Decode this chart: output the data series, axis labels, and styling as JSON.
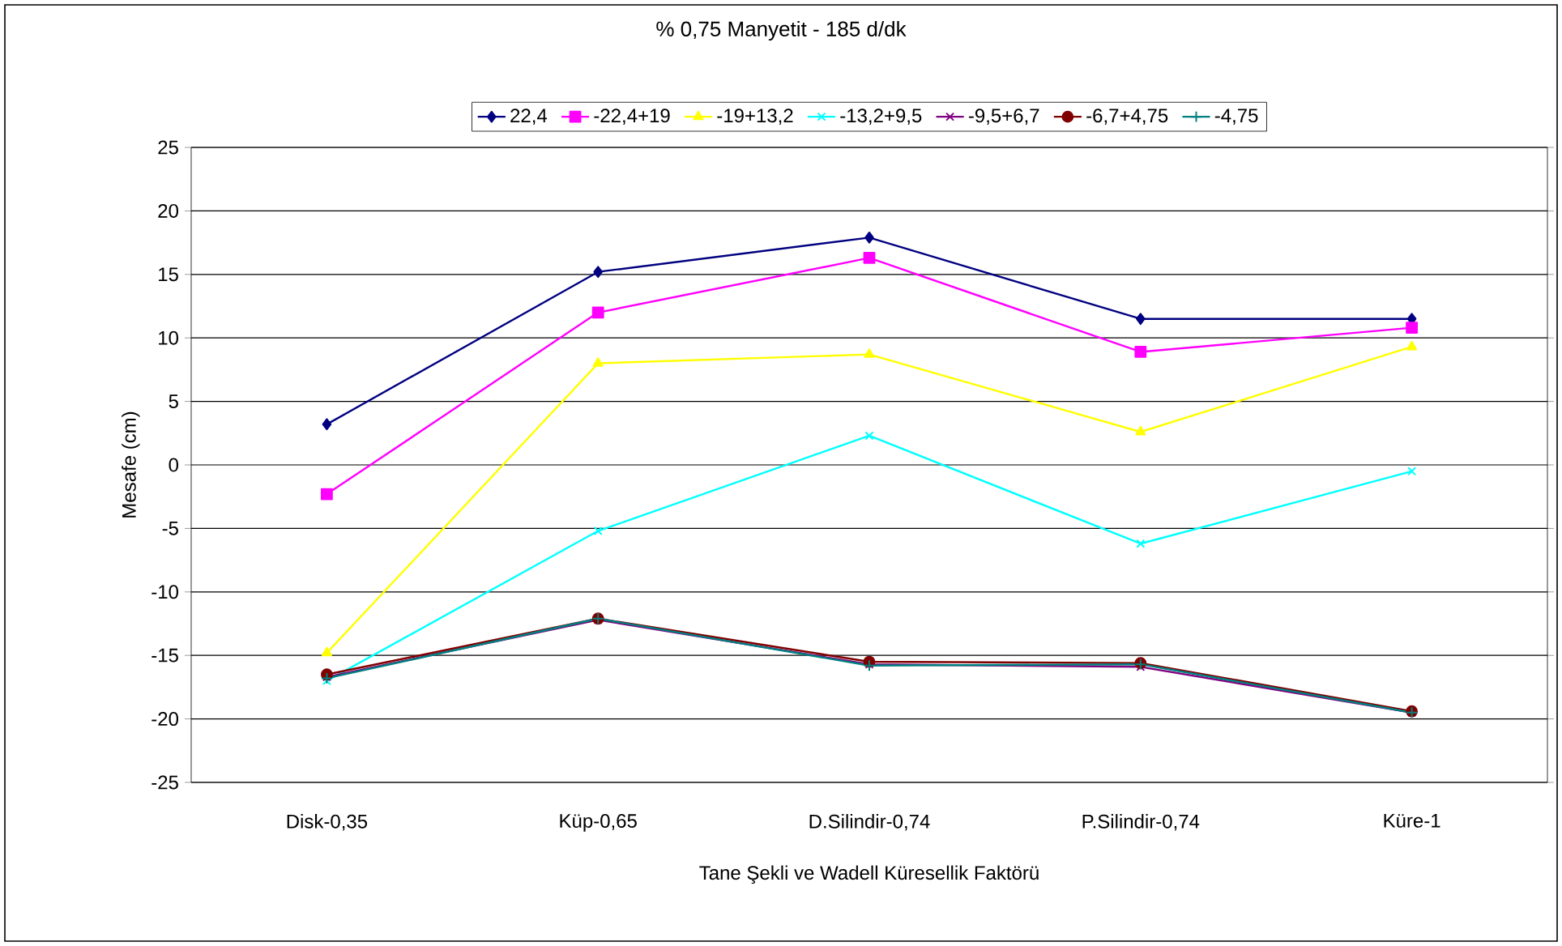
{
  "chart_data": {
    "type": "line",
    "title": "% 0,75 Manyetit - 185 d/dk",
    "xlabel": "Tane Şekli ve Wadell Küresellik Faktörü",
    "ylabel": "Mesafe (cm)",
    "categories": [
      "Disk-0,35",
      "Küp-0,65",
      "D.Silindir-0,74",
      "P.Silindir-0,74",
      "Küre-1"
    ],
    "ylim": [
      -25,
      25
    ],
    "yticks": [
      -25,
      -20,
      -15,
      -10,
      -5,
      0,
      5,
      10,
      15,
      20,
      25
    ],
    "grid": "y",
    "legend": "top",
    "series": [
      {
        "name": "22,4",
        "color": "#000080",
        "marker": "diamond",
        "values": [
          3.2,
          15.2,
          17.9,
          11.5,
          11.5
        ]
      },
      {
        "name": "-22,4+19",
        "color": "#ff00ff",
        "marker": "square",
        "values": [
          -2.3,
          12.0,
          16.3,
          8.9,
          10.8
        ]
      },
      {
        "name": "-19+13,2",
        "color": "#ffff00",
        "marker": "triangle",
        "values": [
          -14.8,
          8.0,
          8.7,
          2.6,
          9.3
        ]
      },
      {
        "name": "-13,2+9,5",
        "color": "#00ffff",
        "marker": "cross",
        "values": [
          -17.0,
          -5.2,
          2.3,
          -6.2,
          -0.5
        ]
      },
      {
        "name": "-9,5+6,7",
        "color": "#800080",
        "marker": "cross",
        "values": [
          -16.7,
          -12.2,
          -15.7,
          -15.9,
          -19.5
        ]
      },
      {
        "name": "-6,7+4,75",
        "color": "#800000",
        "marker": "circle",
        "values": [
          -16.5,
          -12.1,
          -15.5,
          -15.6,
          -19.4
        ]
      },
      {
        "name": "-4,75",
        "color": "#008080",
        "marker": "plus",
        "values": [
          -16.8,
          -12.1,
          -15.8,
          -15.7,
          -19.5
        ]
      }
    ]
  }
}
